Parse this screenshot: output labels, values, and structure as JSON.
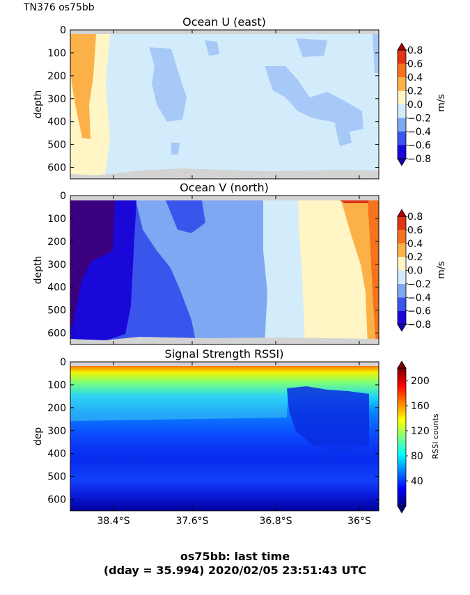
{
  "header": {
    "label": "TN376 os75bb"
  },
  "footer": {
    "line1": "os75bb: last time",
    "line2": "(dday = 35.994) 2020/02/05 23:51:43 UTC"
  },
  "colors": {
    "axes_background": "#ffffff",
    "no_data": "#d3d3d3",
    "diverging": [
      "#1a08d8",
      "#3a55ec",
      "#7fa8f2",
      "#a7c9f7",
      "#d3ecfb",
      "#fff5c5",
      "#fde29a",
      "#fbb147",
      "#f5731c",
      "#e03412",
      "#b30000"
    ]
  },
  "chart_data": [
    {
      "type": "heatmap",
      "title": "Ocean U (east)",
      "ylabel": "depth",
      "ylim": [
        650,
        0
      ],
      "yticks": [
        0,
        100,
        200,
        300,
        400,
        500,
        600
      ],
      "xticks": [
        "38.4°S",
        "37.6°S",
        "36.8°S",
        "36°S"
      ],
      "xticks_shown": false,
      "colorbar": {
        "label": "m/s",
        "levels": [
          -0.8,
          -0.6,
          -0.4,
          -0.2,
          0.0,
          0.2,
          0.4,
          0.6,
          0.8
        ],
        "ticks": [
          "0.8",
          "0.6",
          "0.4",
          "0.2",
          "0.0",
          "−0.2",
          "−0.4",
          "−0.6",
          "−0.8"
        ]
      },
      "description_values": {
        "west_edge": 0.2,
        "west_strip": 0.05,
        "interior": -0.15,
        "patches": -0.3,
        "east_edge": -0.3
      }
    },
    {
      "type": "heatmap",
      "title": "Ocean V (north)",
      "ylabel": "depth",
      "ylim": [
        650,
        0
      ],
      "yticks": [
        0,
        100,
        200,
        300,
        400,
        500,
        600
      ],
      "xticks": [
        "38.4°S",
        "37.6°S",
        "36.8°S",
        "36°S"
      ],
      "xticks_shown": false,
      "colorbar": {
        "label": "m/s",
        "levels": [
          -0.8,
          -0.6,
          -0.4,
          -0.2,
          0.0,
          0.2,
          0.4,
          0.6,
          0.8
        ],
        "ticks": [
          "0.8",
          "0.6",
          "0.4",
          "0.2",
          "0.0",
          "−0.2",
          "−0.4",
          "−0.6",
          "−0.8"
        ]
      },
      "description_values": {
        "west_core": -0.9,
        "west_band": -0.7,
        "middle_west": -0.5,
        "middle": -0.3,
        "middle_east": -0.15,
        "east_band": 0.1,
        "east_edge": 0.4
      }
    },
    {
      "type": "heatmap",
      "title": "Signal Strength RSSI)",
      "ylabel": "dep",
      "ylim": [
        650,
        0
      ],
      "yticks": [
        0,
        100,
        200,
        300,
        400,
        500,
        600
      ],
      "xticks": [
        "38.4°S",
        "37.6°S",
        "36.8°S",
        "36°S"
      ],
      "xticks_shown": true,
      "colorbar": {
        "label": "RSSI counts",
        "range": [
          0,
          220
        ],
        "ticks": [
          "200",
          "160",
          "120",
          "80",
          "40"
        ]
      }
    }
  ]
}
